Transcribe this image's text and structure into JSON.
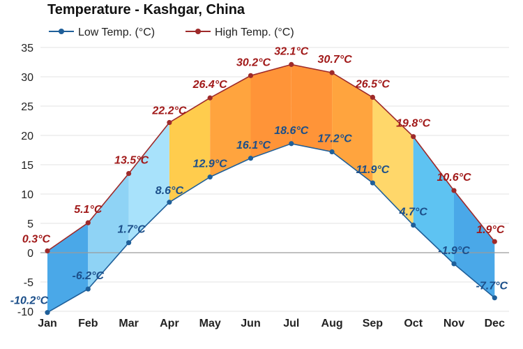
{
  "chart_data": {
    "type": "area",
    "title": "Temperature - Kashgar, China",
    "categories": [
      "Jan",
      "Feb",
      "Mar",
      "Apr",
      "May",
      "Jun",
      "Jul",
      "Aug",
      "Sep",
      "Oct",
      "Nov",
      "Dec"
    ],
    "series": [
      {
        "name": "Low Temp. (°C)",
        "values": [
          -10.2,
          -6.2,
          1.7,
          8.6,
          12.9,
          16.1,
          18.6,
          17.2,
          11.9,
          4.7,
          -1.9,
          -7.7
        ],
        "labels": [
          "-10.2°C",
          "-6.2°C",
          "1.7°C",
          "8.6°C",
          "12.9°C",
          "16.1°C",
          "18.6°C",
          "17.2°C",
          "11.9°C",
          "4.7°C",
          "-1.9°C",
          "-7.7°C"
        ],
        "color": "#1f5f99"
      },
      {
        "name": "High Temp. (°C)",
        "values": [
          0.3,
          5.1,
          13.5,
          22.2,
          26.4,
          30.2,
          32.1,
          30.7,
          26.5,
          19.8,
          10.6,
          1.9
        ],
        "labels": [
          "0.3°C",
          "5.1°C",
          "13.5°C",
          "22.2°C",
          "26.4°C",
          "30.2°C",
          "32.1°C",
          "30.7°C",
          "26.5°C",
          "19.8°C",
          "10.6°C",
          "1.9°C"
        ],
        "color": "#9e2a2a"
      }
    ],
    "fill_colors": [
      "#4aa8e8",
      "#8fd3f5",
      "#a8e2fb",
      "#ffcc4d",
      "#ffa43e",
      "#ff9438",
      "#ff9438",
      "#ffa43e",
      "#ffd76a",
      "#5ec3f2",
      "#4aa8e8",
      "#3f9ce0"
    ],
    "ylim": [
      -12,
      36
    ],
    "yticks": [
      -10,
      -5,
      0,
      5,
      10,
      15,
      20,
      25,
      30,
      35
    ],
    "ytick_labels": [
      "-10",
      "-5",
      "0",
      "5",
      "10",
      "15",
      "20",
      "25",
      "30",
      "35"
    ],
    "grid": true,
    "legend_position": "top-left",
    "xlabel": "",
    "ylabel": ""
  }
}
